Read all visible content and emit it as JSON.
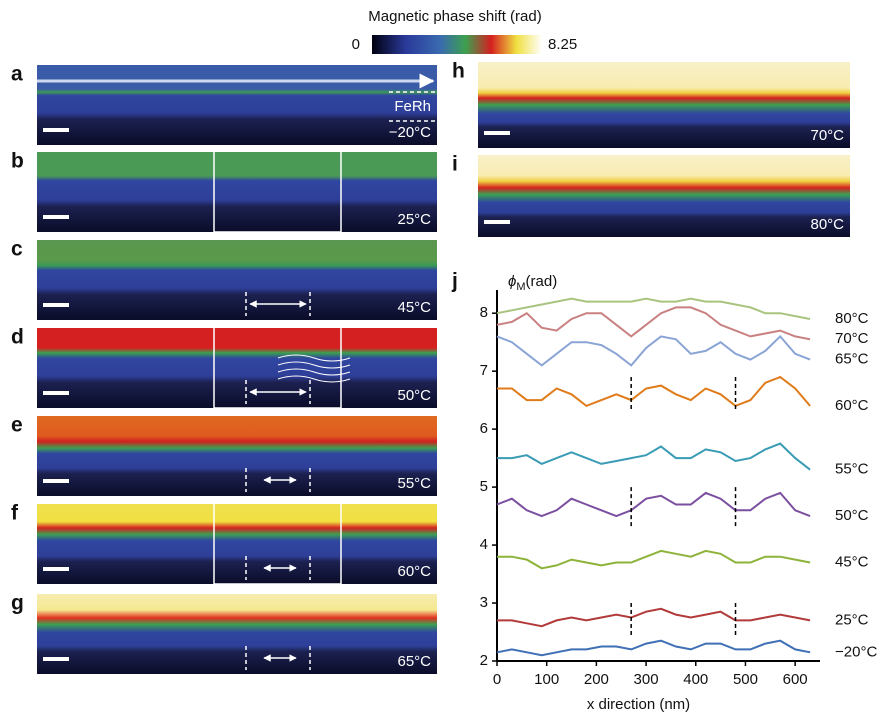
{
  "colorbar": {
    "title": "Magnetic phase shift (rad)",
    "range": [
      0,
      8.25
    ]
  },
  "panels": [
    {
      "letter": "a",
      "temperature": "−20°C",
      "layer": "FeRh"
    },
    {
      "letter": "b",
      "temperature": "25°C"
    },
    {
      "letter": "c",
      "temperature": "45°C"
    },
    {
      "letter": "d",
      "temperature": "50°C"
    },
    {
      "letter": "e",
      "temperature": "55°C"
    },
    {
      "letter": "f",
      "temperature": "60°C"
    },
    {
      "letter": "g",
      "temperature": "65°C"
    },
    {
      "letter": "h",
      "temperature": "70°C"
    },
    {
      "letter": "i",
      "temperature": "80°C"
    }
  ],
  "chart_data": {
    "type": "line",
    "panel": "j",
    "y_label": {
      "symbol": "ϕ",
      "subscript": "M",
      "unit": "(rad)"
    },
    "x_label": "x direction (nm)",
    "x": [
      0,
      30,
      60,
      90,
      120,
      150,
      180,
      210,
      240,
      270,
      300,
      330,
      360,
      390,
      420,
      450,
      480,
      510,
      540,
      570,
      600,
      630
    ],
    "xlim": [
      0,
      650
    ],
    "xticks": [
      0,
      100,
      200,
      300,
      400,
      500,
      600
    ],
    "ylim": [
      2,
      8.4
    ],
    "yticks": [
      2,
      3,
      4,
      5,
      6,
      7,
      8
    ],
    "reference_lines_x": [
      270,
      480
    ],
    "series": [
      {
        "name": "80°C",
        "color": "#a9c47f",
        "values": [
          8.0,
          8.05,
          8.1,
          8.15,
          8.2,
          8.25,
          8.2,
          8.2,
          8.2,
          8.2,
          8.25,
          8.2,
          8.2,
          8.25,
          8.2,
          8.2,
          8.15,
          8.1,
          8.0,
          8.0,
          7.95,
          7.9
        ]
      },
      {
        "name": "70°C",
        "color": "#c98080",
        "values": [
          7.8,
          7.85,
          8.0,
          7.75,
          7.7,
          7.9,
          8.0,
          8.0,
          7.8,
          7.6,
          7.8,
          8.0,
          8.1,
          8.1,
          8.0,
          7.8,
          7.7,
          7.6,
          7.65,
          7.7,
          7.6,
          7.55
        ]
      },
      {
        "name": "65°C",
        "color": "#8aa4d6",
        "values": [
          7.6,
          7.5,
          7.3,
          7.1,
          7.3,
          7.5,
          7.5,
          7.45,
          7.3,
          7.1,
          7.4,
          7.6,
          7.55,
          7.3,
          7.35,
          7.5,
          7.3,
          7.2,
          7.35,
          7.6,
          7.3,
          7.2
        ]
      },
      {
        "name": "60°C",
        "color": "#e07b1a",
        "values": [
          6.7,
          6.7,
          6.5,
          6.5,
          6.7,
          6.6,
          6.4,
          6.5,
          6.6,
          6.5,
          6.7,
          6.75,
          6.6,
          6.5,
          6.7,
          6.6,
          6.4,
          6.5,
          6.8,
          6.9,
          6.7,
          6.4
        ]
      },
      {
        "name": "55°C",
        "color": "#3a9bb5",
        "values": [
          5.5,
          5.5,
          5.55,
          5.4,
          5.5,
          5.6,
          5.5,
          5.4,
          5.45,
          5.5,
          5.55,
          5.7,
          5.5,
          5.5,
          5.65,
          5.6,
          5.45,
          5.5,
          5.65,
          5.75,
          5.5,
          5.3
        ]
      },
      {
        "name": "50°C",
        "color": "#7b4fa0",
        "values": [
          4.7,
          4.8,
          4.6,
          4.5,
          4.6,
          4.8,
          4.7,
          4.6,
          4.5,
          4.6,
          4.8,
          4.85,
          4.7,
          4.7,
          4.9,
          4.8,
          4.6,
          4.6,
          4.8,
          4.9,
          4.6,
          4.5
        ]
      },
      {
        "name": "45°C",
        "color": "#8db33a",
        "values": [
          3.8,
          3.8,
          3.75,
          3.6,
          3.65,
          3.75,
          3.7,
          3.65,
          3.7,
          3.7,
          3.8,
          3.9,
          3.85,
          3.8,
          3.9,
          3.85,
          3.7,
          3.7,
          3.8,
          3.8,
          3.75,
          3.7
        ]
      },
      {
        "name": "25°C",
        "color": "#b23a3a",
        "values": [
          2.7,
          2.7,
          2.65,
          2.6,
          2.7,
          2.75,
          2.7,
          2.75,
          2.8,
          2.75,
          2.85,
          2.9,
          2.8,
          2.75,
          2.8,
          2.85,
          2.7,
          2.7,
          2.75,
          2.8,
          2.75,
          2.7
        ]
      },
      {
        "name": "−20°C",
        "color": "#3f6fb5",
        "values": [
          2.15,
          2.2,
          2.15,
          2.1,
          2.15,
          2.2,
          2.2,
          2.25,
          2.25,
          2.2,
          2.3,
          2.35,
          2.25,
          2.2,
          2.3,
          2.3,
          2.2,
          2.2,
          2.3,
          2.35,
          2.2,
          2.15
        ]
      }
    ]
  }
}
